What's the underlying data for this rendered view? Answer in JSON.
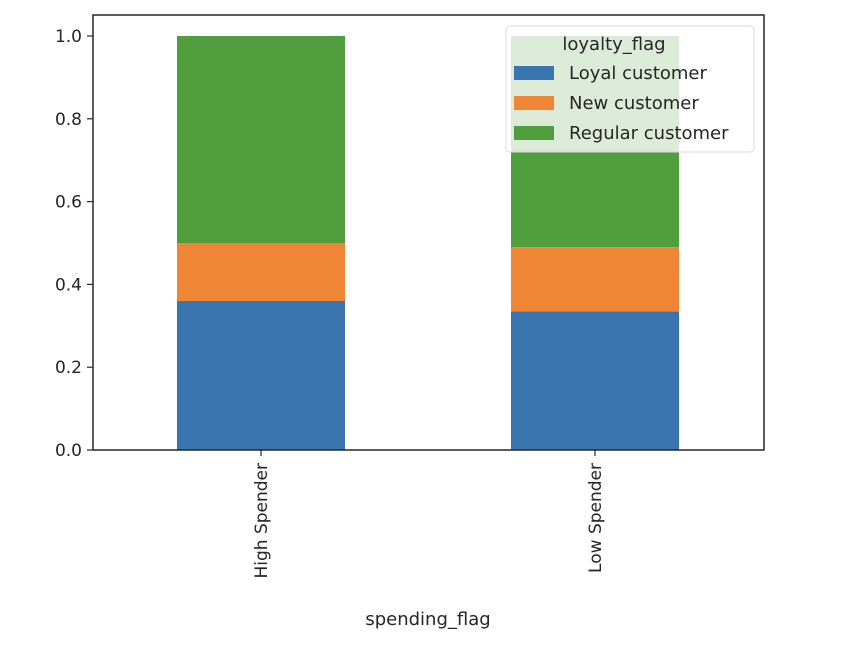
{
  "chart_data": {
    "type": "bar",
    "stacked": true,
    "xlabel": "spending_flag",
    "ylabel": "",
    "categories": [
      "High Spender",
      "Low Spender"
    ],
    "ylim": [
      0.0,
      1.0
    ],
    "y_ticks": [
      "0.0",
      "0.2",
      "0.4",
      "0.6",
      "0.8",
      "1.0"
    ],
    "y_tick_values": [
      0.0,
      0.2,
      0.4,
      0.6,
      0.8,
      1.0
    ],
    "legend": {
      "title": "loyalty_flag",
      "placement": "upper right"
    },
    "series": [
      {
        "name": "Loyal customer",
        "color": "#3a75af",
        "values": [
          0.36,
          0.335
        ]
      },
      {
        "name": "New customer",
        "color": "#ef8636",
        "values": [
          0.14,
          0.155
        ]
      },
      {
        "name": "Regular customer",
        "color": "#519e3e",
        "values": [
          0.5,
          0.51
        ]
      }
    ]
  }
}
